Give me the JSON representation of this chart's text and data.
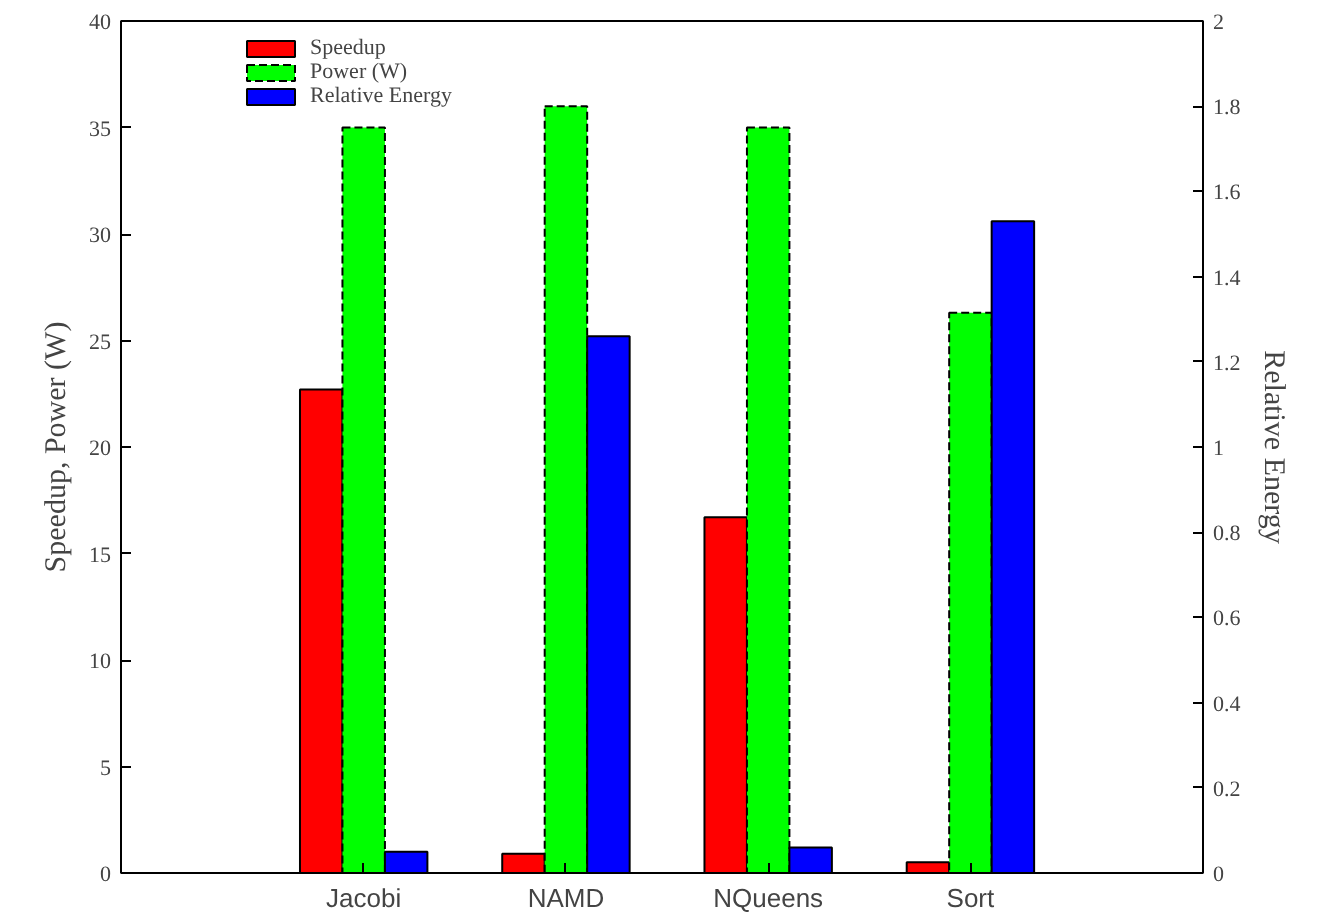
{
  "chart_data": {
    "type": "bar",
    "ylabel": "Speedup, Power (W)",
    "y2label": "Relative Energy",
    "categories": [
      "Jacobi",
      "NAMD",
      "NQueens",
      "Sort"
    ],
    "series": [
      {
        "name": "Speedup",
        "color": "#ff0000",
        "values": [
          22.7,
          0.9,
          16.7,
          0.5
        ]
      },
      {
        "name": "Power (W)",
        "color": "#00ff00",
        "values": [
          35,
          36,
          35,
          26.3
        ],
        "line_style": "dashed"
      },
      {
        "name": "Relative Energy",
        "color": "#0000ff",
        "values": [
          0.05,
          1.26,
          0.06,
          1.53
        ],
        "axis": "y2"
      }
    ],
    "ylim": [
      0,
      40
    ],
    "yticks": [
      0,
      5,
      10,
      15,
      20,
      25,
      30,
      35,
      40
    ],
    "y2lim": [
      0,
      2
    ],
    "y2ticks": [
      0,
      0.2,
      0.4,
      0.6,
      0.8,
      1,
      1.2,
      1.4,
      1.6,
      1.8,
      2
    ],
    "grid": false,
    "legend": "top left"
  }
}
